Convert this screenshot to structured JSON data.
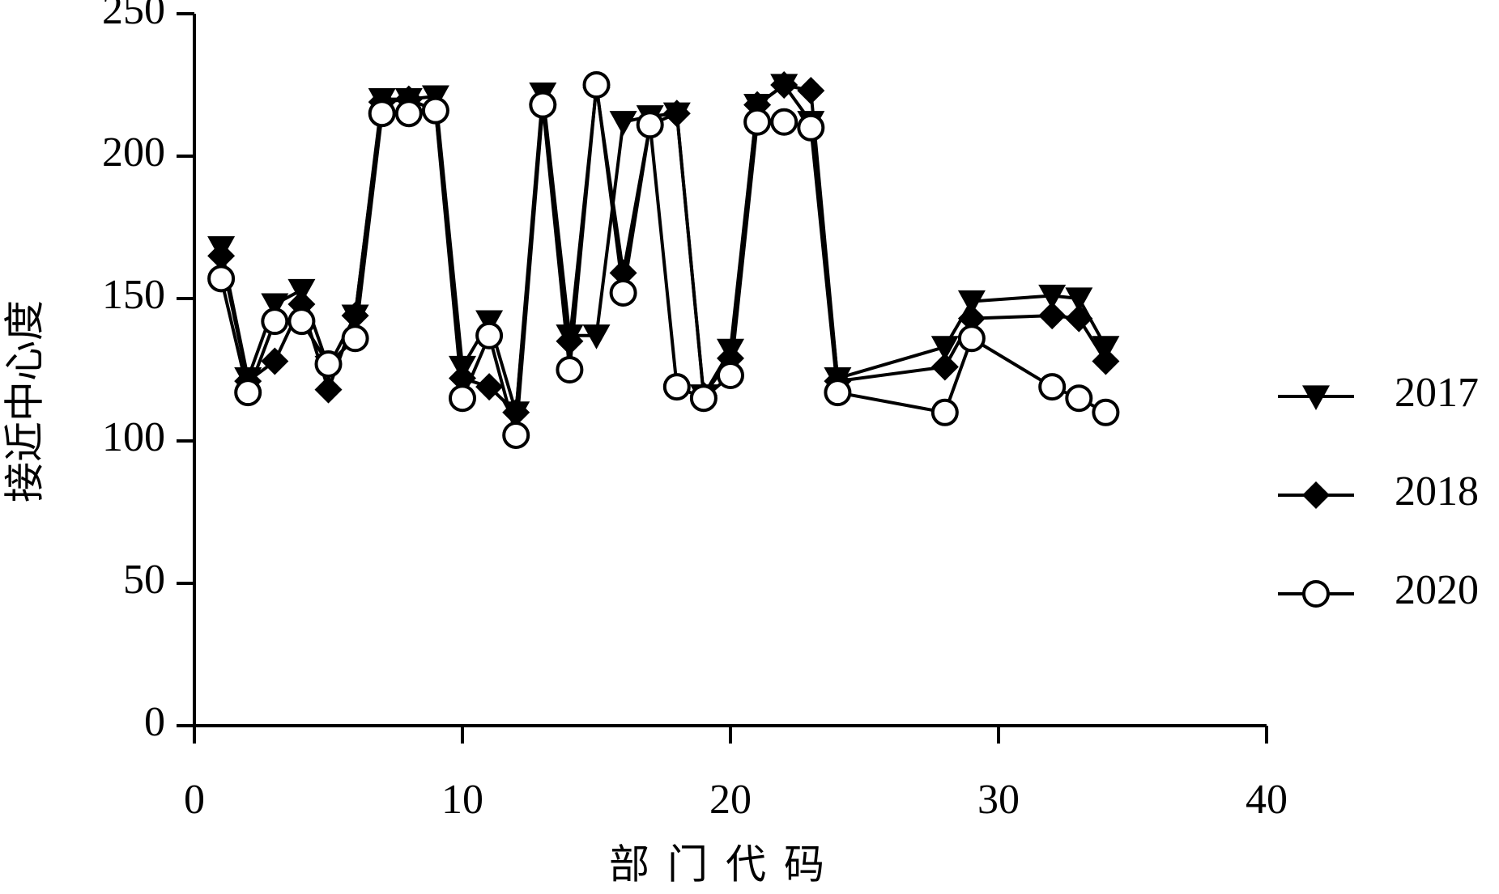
{
  "chart_data": {
    "type": "line",
    "x_label": "部门代码",
    "y_label": "接近中心度",
    "x": [
      1,
      2,
      3,
      4,
      5,
      6,
      7,
      8,
      9,
      10,
      11,
      12,
      13,
      14,
      15,
      16,
      17,
      18,
      19,
      20,
      21,
      22,
      23,
      24,
      28,
      29,
      32,
      33,
      34
    ],
    "series": [
      {
        "name": "2017",
        "color": "#000000",
        "marker": "triangle-down",
        "values": [
          168,
          122,
          148,
          153,
          126,
          144,
          220,
          220,
          221,
          126,
          142,
          110,
          222,
          137,
          137,
          212,
          214,
          215,
          116,
          132,
          218,
          225,
          212,
          122,
          133,
          149,
          151,
          150,
          133
        ]
      },
      {
        "name": "2018",
        "color": "#000000",
        "marker": "diamond",
        "values": [
          165,
          121,
          128,
          148,
          118,
          144,
          219,
          220,
          216,
          122,
          119,
          110,
          218,
          135,
          224,
          159,
          211,
          215,
          116,
          129,
          218,
          225,
          223,
          121,
          126,
          143,
          144,
          143,
          128
        ]
      },
      {
        "name": "2020",
        "color": "#000000",
        "marker": "open-circle",
        "values": [
          157,
          117,
          142,
          142,
          127,
          136,
          215,
          215,
          216,
          115,
          137,
          102,
          218,
          125,
          225,
          152,
          211,
          119,
          115,
          123,
          212,
          212,
          210,
          117,
          110,
          136,
          119,
          115,
          110
        ]
      }
    ],
    "xlim": [
      0,
      40
    ],
    "xticks": [
      0,
      10,
      20,
      30,
      40
    ],
    "ylim": [
      0,
      250
    ],
    "yticks": [
      0,
      50,
      100,
      150,
      200,
      250
    ],
    "grid": false,
    "legend": "right"
  }
}
